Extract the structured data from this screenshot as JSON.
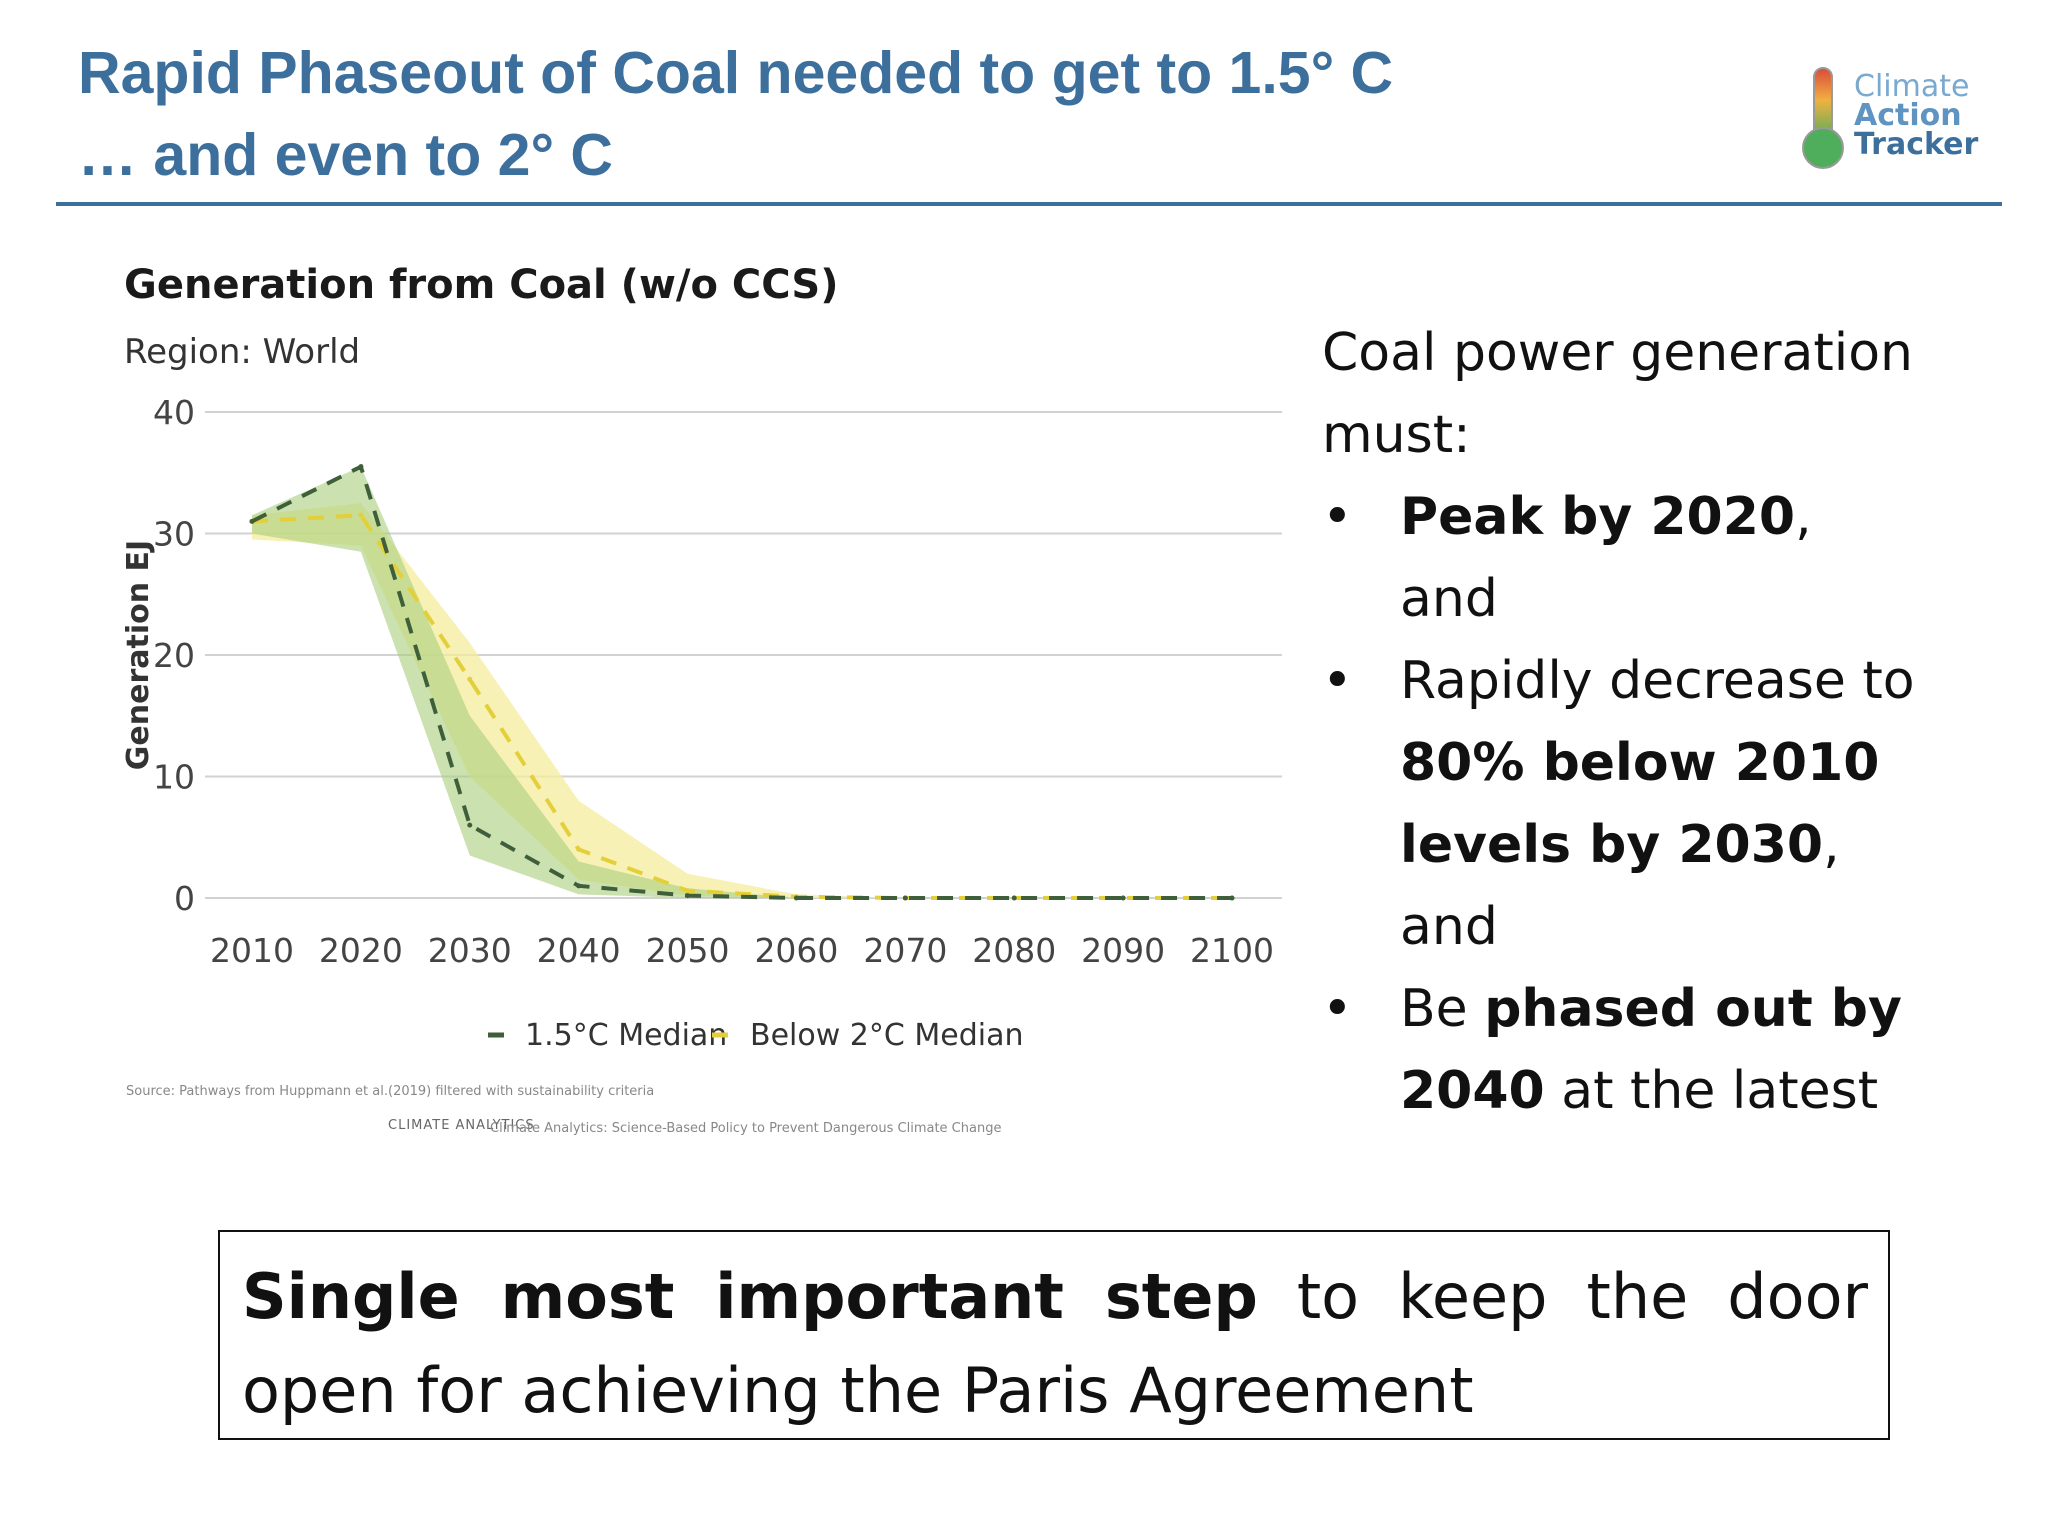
{
  "header": {
    "title_line1": "Rapid Phaseout of Coal needed to get to 1.5° C",
    "title_line2": "… and even to 2° C"
  },
  "logo": {
    "line1": "Climate",
    "line2": "Action",
    "line3": "Tracker",
    "icon": "thermometer-icon"
  },
  "chart_data": {
    "type": "line",
    "title": "Generation from Coal (w/o CCS)",
    "subtitle": "Region: World",
    "ylabel": "Generation EJ",
    "xlabel": "",
    "x": [
      2010,
      2020,
      2030,
      2040,
      2050,
      2060,
      2070,
      2080,
      2090,
      2100
    ],
    "x_tick_labels": [
      "2010",
      "2020",
      "2030",
      "2040",
      "2050",
      "2060",
      "2070",
      "2080",
      "2090",
      "2100"
    ],
    "ylim": [
      0,
      40
    ],
    "y_ticks": [
      0,
      10,
      20,
      30,
      40
    ],
    "grid": true,
    "legend": "bottom",
    "series": [
      {
        "name": "1.5°C Median",
        "color": "#3f5f3a",
        "band_color": "#a9cf7c",
        "values": [
          31,
          35.5,
          6,
          1,
          0.2,
          0,
          0,
          0,
          0,
          0
        ],
        "band_low": [
          30,
          28.5,
          3.5,
          0.3,
          0,
          0,
          0,
          0,
          0,
          0
        ],
        "band_high": [
          31.5,
          35.5,
          15,
          3,
          0.8,
          0,
          0,
          0,
          0,
          0
        ]
      },
      {
        "name": "Below 2°C Median",
        "color": "#e3cf3a",
        "band_color": "#f6ec9e",
        "values": [
          31,
          31.5,
          18,
          4,
          0.6,
          0.1,
          0,
          0,
          0,
          0
        ],
        "band_low": [
          29.5,
          29,
          10,
          1.5,
          0.2,
          0,
          0,
          0,
          0,
          0
        ],
        "band_high": [
          31.5,
          32.5,
          21,
          8,
          2,
          0.3,
          0,
          0,
          0,
          0
        ]
      }
    ]
  },
  "chart_footer": {
    "source": "Source: Pathways from Huppmann et al.(2019) filtered with sustainability criteria",
    "org_logo": "CLIMATE ANALYTICS",
    "org_tagline": "Climate Analytics: Science-Based Policy to Prevent Dangerous Climate Change"
  },
  "side": {
    "intro": "Coal power generation must:",
    "bullet_char": "•",
    "items": [
      {
        "bold": "Peak by 2020",
        "rest": ", and"
      },
      {
        "plain": "Rapidly decrease to ",
        "bold": "80% below 2010 levels by 2030",
        "rest": ", and"
      },
      {
        "plain": "Be ",
        "bold": "phased out by 2040",
        "rest": " at the latest"
      }
    ]
  },
  "callout": {
    "bold": "Single most important step",
    "rest": " to keep the door open for achieving the Paris Agreement"
  }
}
